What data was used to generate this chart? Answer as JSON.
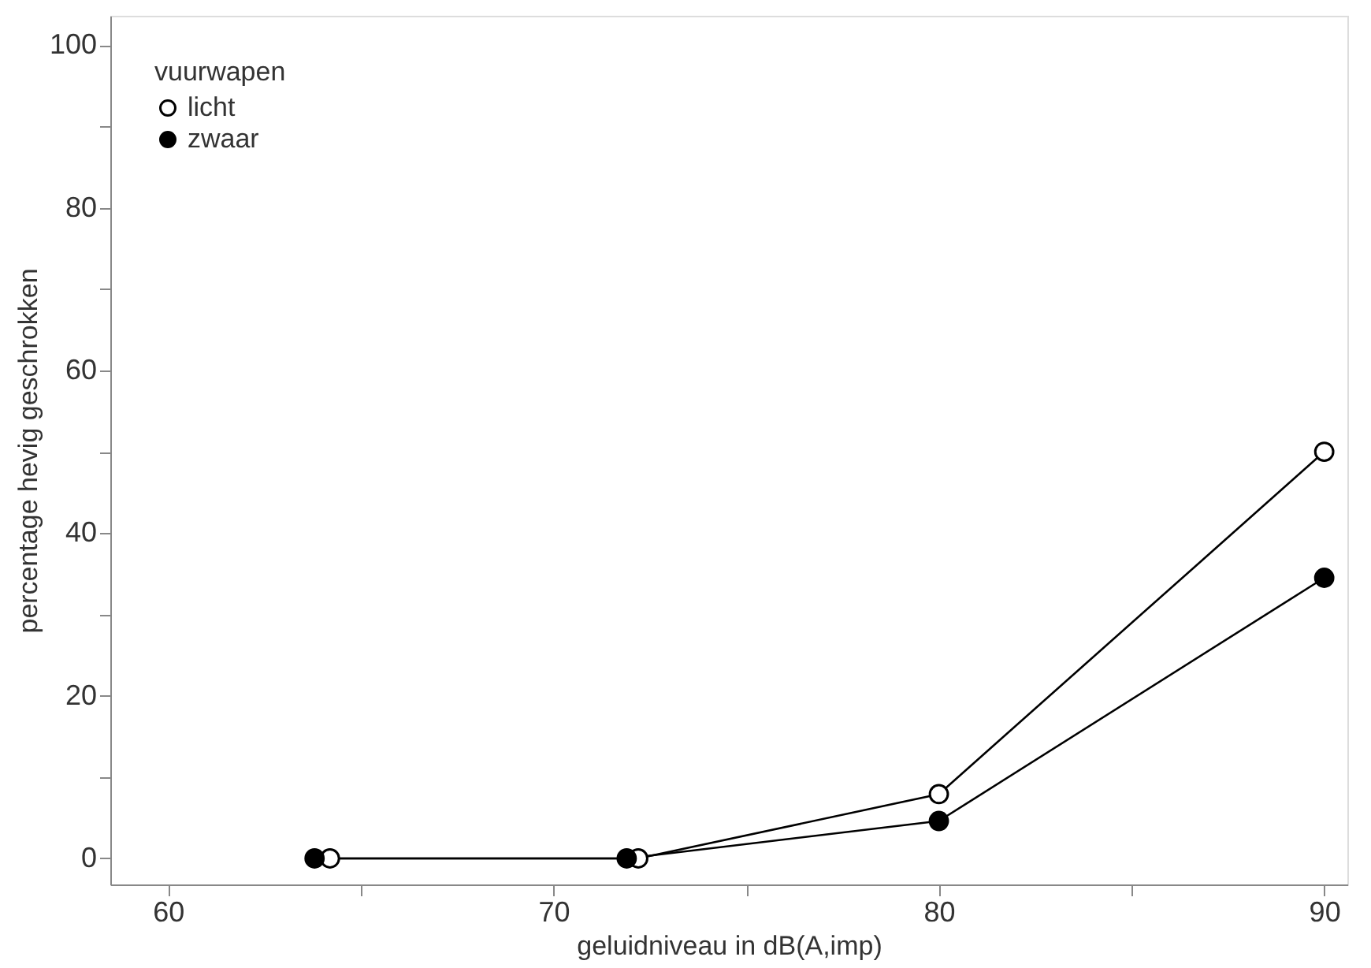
{
  "chart_data": {
    "type": "line",
    "xlabel": "geluidniveau in dB(A,imp)",
    "ylabel": "percentage hevig geschrokken",
    "legend_title": "vuurwapen",
    "xlim": [
      58.5,
      90.6
    ],
    "ylim": [
      -3.2,
      103.6
    ],
    "xticks": [
      60,
      {
        "value": 65,
        "label": null
      },
      70,
      {
        "value": 75,
        "label": null
      },
      80,
      {
        "value": 85,
        "label": null
      },
      90
    ],
    "yticks": [
      0,
      {
        "value": 10,
        "label": null
      },
      20,
      {
        "value": 30,
        "label": null
      },
      40,
      {
        "value": 50,
        "label": null
      },
      60,
      {
        "value": 70,
        "label": null
      },
      80,
      {
        "value": 90,
        "label": null
      },
      100
    ],
    "grid": false,
    "legend": "top left",
    "marker": "circle",
    "line_style": "solid",
    "series": [
      {
        "name": "licht",
        "color": "#ffffff",
        "x": [
          64.2,
          72.2,
          80,
          90
        ],
        "values": [
          0,
          0,
          7.9,
          50
        ]
      },
      {
        "name": "zwaar",
        "color": "#000000",
        "x": [
          63.8,
          71.9,
          80,
          90
        ],
        "values": [
          0,
          0,
          4.6,
          34.5
        ]
      }
    ]
  }
}
